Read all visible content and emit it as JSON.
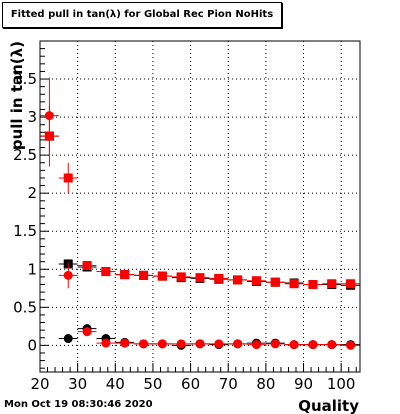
{
  "chart_data": {
    "type": "scatter",
    "title": "Fitted pull in tan(λ) for Global Rec Pion NoHits",
    "xlabel": "Quality",
    "ylabel": "pull in tan(λ)",
    "xlim": [
      20,
      105
    ],
    "ylim": [
      -0.35,
      4.0
    ],
    "xticks": [
      20,
      30,
      40,
      50,
      60,
      70,
      80,
      90,
      100
    ],
    "yticks": [
      0,
      0.5,
      1,
      1.5,
      2,
      2.5,
      3,
      3.5
    ],
    "ytick_labels": [
      "0",
      "0.5",
      "1",
      "1.5",
      "2",
      "2.5",
      "3",
      "3.5"
    ],
    "grid": true,
    "series": [
      {
        "marker": "square",
        "color": "#000000",
        "points": [
          {
            "x": 22.5,
            "y": 2.75,
            "ey": 0.0
          },
          {
            "x": 27.5,
            "y": 1.07,
            "ey": 0.03
          },
          {
            "x": 32.5,
            "y": 1.03,
            "ey": 0.03
          },
          {
            "x": 37.5,
            "y": 0.97,
            "ey": 0.02
          },
          {
            "x": 42.5,
            "y": 0.93,
            "ey": 0.02
          },
          {
            "x": 47.5,
            "y": 0.92,
            "ey": 0.02
          },
          {
            "x": 52.5,
            "y": 0.91,
            "ey": 0.02
          },
          {
            "x": 57.5,
            "y": 0.89,
            "ey": 0.02
          },
          {
            "x": 62.5,
            "y": 0.88,
            "ey": 0.02
          },
          {
            "x": 67.5,
            "y": 0.87,
            "ey": 0.02
          },
          {
            "x": 72.5,
            "y": 0.86,
            "ey": 0.02
          },
          {
            "x": 77.5,
            "y": 0.84,
            "ey": 0.02
          },
          {
            "x": 82.5,
            "y": 0.83,
            "ey": 0.02
          },
          {
            "x": 87.5,
            "y": 0.82,
            "ey": 0.02
          },
          {
            "x": 92.5,
            "y": 0.8,
            "ey": 0.02
          },
          {
            "x": 97.5,
            "y": 0.8,
            "ey": 0.02
          },
          {
            "x": 102.5,
            "y": 0.79,
            "ey": 0.02
          }
        ]
      },
      {
        "marker": "square",
        "color": "#ff0000",
        "points": [
          {
            "x": 22.5,
            "y": 2.75,
            "ey": 0.4
          },
          {
            "x": 27.5,
            "y": 2.2,
            "ey": 0.2
          },
          {
            "x": 32.5,
            "y": 1.05,
            "ey": 0.04
          },
          {
            "x": 37.5,
            "y": 0.97,
            "ey": 0.03
          },
          {
            "x": 42.5,
            "y": 0.93,
            "ey": 0.02
          },
          {
            "x": 47.5,
            "y": 0.92,
            "ey": 0.02
          },
          {
            "x": 52.5,
            "y": 0.91,
            "ey": 0.02
          },
          {
            "x": 57.5,
            "y": 0.9,
            "ey": 0.02
          },
          {
            "x": 62.5,
            "y": 0.89,
            "ey": 0.02
          },
          {
            "x": 67.5,
            "y": 0.88,
            "ey": 0.02
          },
          {
            "x": 72.5,
            "y": 0.86,
            "ey": 0.02
          },
          {
            "x": 77.5,
            "y": 0.85,
            "ey": 0.02
          },
          {
            "x": 82.5,
            "y": 0.83,
            "ey": 0.02
          },
          {
            "x": 87.5,
            "y": 0.81,
            "ey": 0.02
          },
          {
            "x": 92.5,
            "y": 0.8,
            "ey": 0.02
          },
          {
            "x": 97.5,
            "y": 0.81,
            "ey": 0.02
          },
          {
            "x": 102.5,
            "y": 0.81,
            "ey": 0.02
          }
        ]
      },
      {
        "marker": "circle",
        "color": "#000000",
        "points": [
          {
            "x": 27.5,
            "y": 0.09,
            "ey": 0.04
          },
          {
            "x": 32.5,
            "y": 0.22,
            "ey": 0.03
          },
          {
            "x": 37.5,
            "y": 0.09,
            "ey": 0.03
          },
          {
            "x": 42.5,
            "y": 0.04,
            "ey": 0.02
          },
          {
            "x": 47.5,
            "y": 0.02,
            "ey": 0.02
          },
          {
            "x": 52.5,
            "y": 0.02,
            "ey": 0.02
          },
          {
            "x": 57.5,
            "y": 0.0,
            "ey": 0.02
          },
          {
            "x": 62.5,
            "y": 0.02,
            "ey": 0.02
          },
          {
            "x": 67.5,
            "y": 0.01,
            "ey": 0.02
          },
          {
            "x": 72.5,
            "y": 0.02,
            "ey": 0.02
          },
          {
            "x": 77.5,
            "y": 0.03,
            "ey": 0.02
          },
          {
            "x": 82.5,
            "y": 0.03,
            "ey": 0.02
          },
          {
            "x": 87.5,
            "y": 0.01,
            "ey": 0.02
          },
          {
            "x": 92.5,
            "y": 0.01,
            "ey": 0.02
          },
          {
            "x": 97.5,
            "y": 0.01,
            "ey": 0.02
          },
          {
            "x": 102.5,
            "y": 0.01,
            "ey": 0.02
          }
        ]
      },
      {
        "marker": "circle",
        "color": "#ff0000",
        "points": [
          {
            "x": 22.5,
            "y": 3.02,
            "ey": 0.5
          },
          {
            "x": 27.5,
            "y": 0.92,
            "ey": 0.17
          },
          {
            "x": 32.5,
            "y": 0.18,
            "ey": 0.06
          },
          {
            "x": 37.5,
            "y": 0.03,
            "ey": 0.03
          },
          {
            "x": 42.5,
            "y": 0.03,
            "ey": 0.02
          },
          {
            "x": 47.5,
            "y": 0.02,
            "ey": 0.02
          },
          {
            "x": 52.5,
            "y": 0.02,
            "ey": 0.02
          },
          {
            "x": 57.5,
            "y": 0.02,
            "ey": 0.02
          },
          {
            "x": 62.5,
            "y": 0.02,
            "ey": 0.02
          },
          {
            "x": 67.5,
            "y": 0.02,
            "ey": 0.02
          },
          {
            "x": 72.5,
            "y": 0.02,
            "ey": 0.02
          },
          {
            "x": 77.5,
            "y": 0.01,
            "ey": 0.02
          },
          {
            "x": 82.5,
            "y": 0.02,
            "ey": 0.02
          },
          {
            "x": 87.5,
            "y": 0.01,
            "ey": 0.02
          },
          {
            "x": 92.5,
            "y": 0.01,
            "ey": 0.02
          },
          {
            "x": 97.5,
            "y": 0.01,
            "ey": 0.02
          },
          {
            "x": 102.5,
            "y": 0.0,
            "ey": 0.02
          }
        ]
      }
    ]
  },
  "footer": {
    "timestamp": "Mon Oct 19 08:30:46 2020"
  }
}
